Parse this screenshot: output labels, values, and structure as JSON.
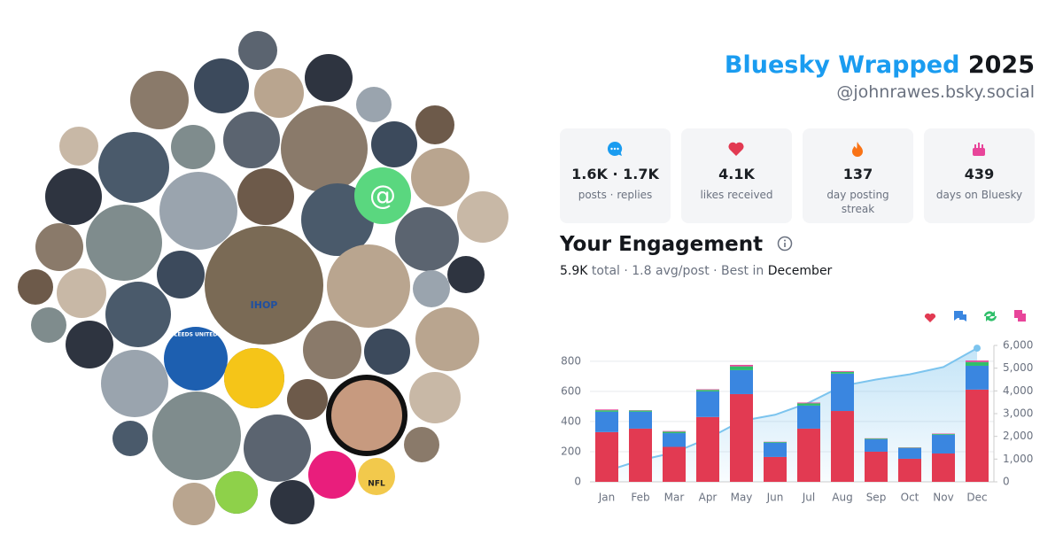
{
  "header": {
    "title": "Bluesky Wrapped",
    "year": "2025",
    "handle": "@johnrawes.bsky.social"
  },
  "stats": [
    {
      "value": "1.6K · 1.7K",
      "label": "posts · replies"
    },
    {
      "value": "4.1K",
      "label": "likes received"
    },
    {
      "value": "137",
      "label": "day posting streak"
    },
    {
      "value": "439",
      "label": "days on Bluesky"
    }
  ],
  "engagement": {
    "title": "Your Engagement",
    "total": "5.9K",
    "middle": "total · 1.8 avg/post · Best in",
    "best": "December"
  },
  "avatar_texts": {
    "ihop": "IHOP",
    "nfl": "NFL",
    "leeds": "LEEDS UNITED",
    "at": "@"
  },
  "chart_data": {
    "type": "bar",
    "categories": [
      "Jan",
      "Feb",
      "Mar",
      "Apr",
      "May",
      "Jun",
      "Jul",
      "Aug",
      "Sep",
      "Oct",
      "Nov",
      "Dec"
    ],
    "series": [
      {
        "color": "#e23a52",
        "values": [
          330,
          353,
          232,
          430,
          582,
          165,
          353,
          470,
          200,
          153,
          188,
          612
        ]
      },
      {
        "color": "#3a86e0",
        "values": [
          135,
          112,
          91,
          170,
          159,
          94,
          153,
          248,
          82,
          71,
          124,
          158
        ]
      },
      {
        "color": "#2fbf6a",
        "values": [
          10,
          8,
          10,
          10,
          25,
          5,
          15,
          12,
          5,
          3,
          5,
          25
        ]
      },
      {
        "color": "#e8459a",
        "values": [
          5,
          2,
          4,
          4,
          10,
          2,
          5,
          5,
          2,
          2,
          3,
          10
        ]
      },
      {
        "type": "line",
        "axis": "y2",
        "color": "#7cc4ee",
        "values": [
          480,
          950,
          1290,
          1900,
          2680,
          2950,
          3480,
          4220,
          4500,
          4730,
          5050,
          5880
        ]
      }
    ],
    "ylim": [
      0,
      905
    ],
    "yticks": [
      0,
      200,
      400,
      600,
      800
    ],
    "y2lim": [
      0,
      6000
    ],
    "y2ticks": [
      0,
      {
        "value": 1000,
        "label": "1,000"
      },
      {
        "value": 2000,
        "label": "2,000"
      },
      {
        "value": 3000,
        "label": "3,000"
      },
      {
        "value": 4000,
        "label": "4,000"
      },
      {
        "value": 5000,
        "label": "5,000"
      },
      {
        "value": 6000,
        "label": "6,000"
      }
    ],
    "grid": true
  }
}
